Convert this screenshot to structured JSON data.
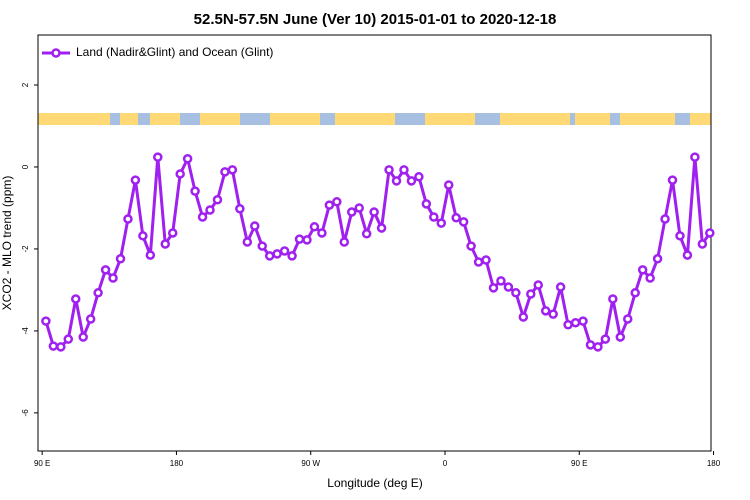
{
  "chart_data": {
    "type": "line",
    "title": "52.5N-57.5N June (Ver 10)   2015-01-01 to 2020-12-18",
    "x_label": "Longitude (deg E)",
    "y_label": "XCO2 - MLO trend (ppm)",
    "xlim": [
      87.2,
      538.3
    ],
    "ylim": [
      -6.93,
      3.22
    ],
    "xticks": [
      {
        "value": 90,
        "label": "90 E"
      },
      {
        "value": 180,
        "label": "180"
      },
      {
        "value": 270,
        "label": "90 W"
      },
      {
        "value": 360,
        "label": "0"
      },
      {
        "value": 450,
        "label": "90 E"
      },
      {
        "value": 540,
        "label": "180"
      }
    ],
    "yticks": [
      -6,
      -4,
      -2,
      0,
      2
    ],
    "legend": "top-left",
    "series": [
      {
        "name": "Land (Nadir&Glint) and Ocean (Glint)",
        "color": "#a020f0",
        "x": [
          92.5,
          97.5,
          102.5,
          107.5,
          112.5,
          117.5,
          122.5,
          127.5,
          132.5,
          137.5,
          142.5,
          147.5,
          152.5,
          157.5,
          162.5,
          167.5,
          172.5,
          177.5,
          182.5,
          187.5,
          192.5,
          197.5,
          202.5,
          207.5,
          212.5,
          217.5,
          222.5,
          227.5,
          232.5,
          237.5,
          242.5,
          247.5,
          252.5,
          257.5,
          262.5,
          267.5,
          272.5,
          277.5,
          282.5,
          287.5,
          292.5,
          297.5,
          302.5,
          307.5,
          312.5,
          317.5,
          322.5,
          327.5,
          332.5,
          337.5,
          342.5,
          347.5,
          352.5,
          357.5,
          362.5,
          367.5,
          372.5,
          377.5,
          382.5,
          387.5,
          392.5,
          397.5,
          402.5,
          407.5,
          412.5,
          417.5,
          422.5,
          427.5,
          432.5,
          437.5,
          442.5,
          447.5,
          452.5,
          457.5,
          462.5,
          467.5,
          472.5,
          477.5,
          482.5,
          487.5,
          492.5,
          497.5,
          502.5,
          507.5,
          512.5,
          517.5,
          522.5,
          527.5,
          532.5,
          537.5
        ],
        "values": [
          -3.76,
          -4.37,
          -4.39,
          -4.2,
          -3.22,
          -4.15,
          -3.71,
          -3.07,
          -2.51,
          -2.71,
          -2.24,
          -1.27,
          -0.32,
          -1.68,
          -2.15,
          0.24,
          -1.88,
          -1.61,
          -0.17,
          0.2,
          -0.59,
          -1.22,
          -1.05,
          -0.8,
          -0.12,
          -0.07,
          -1.02,
          -1.83,
          -1.44,
          -1.93,
          -2.17,
          -2.12,
          -2.05,
          -2.17,
          -1.76,
          -1.78,
          -1.46,
          -1.61,
          -0.93,
          -0.85,
          -1.83,
          -1.1,
          -1.0,
          -1.63,
          -1.1,
          -1.49,
          -0.07,
          -0.34,
          -0.07,
          -0.34,
          -0.24,
          -0.9,
          -1.22,
          -1.37,
          -0.44,
          -1.24,
          -1.34,
          -1.93,
          -2.32,
          -2.27,
          -2.95,
          -2.78,
          -2.93,
          -3.07,
          -3.66,
          -3.1,
          -2.88,
          -3.51,
          -3.59,
          -2.93,
          -3.85,
          -3.8,
          -3.76,
          -4.34,
          -4.39,
          -4.2,
          -3.22,
          -4.15,
          -3.71,
          -3.07,
          -2.51,
          -2.71,
          -2.24,
          -1.27,
          -0.32,
          -1.68,
          -2.15,
          0.24,
          -1.88,
          -1.61
        ]
      }
    ]
  }
}
